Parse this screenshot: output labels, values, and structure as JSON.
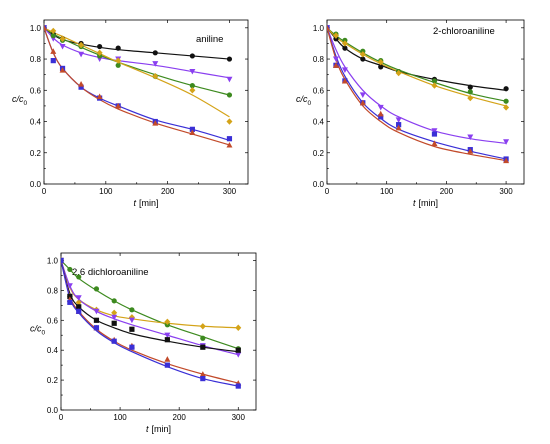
{
  "colors": {
    "black": "#111111",
    "purple": "#8a3ff0",
    "green": "#3d8a1f",
    "gold": "#d4a318",
    "blue": "#3a2fd6",
    "red": "#c24a2a"
  },
  "chart_data": [
    {
      "type": "scatter",
      "title": "aniline",
      "xlabel_prefix": "t",
      "xlabel_unit": "[min]",
      "ylabel_main": "c/c",
      "ylabel_sub": "0",
      "xlim": [
        0,
        330
      ],
      "ylim": [
        0,
        1.05
      ],
      "xticks": [
        0,
        100,
        200,
        300
      ],
      "yticks": [
        0.0,
        0.2,
        0.4,
        0.6,
        0.8,
        1.0
      ],
      "xtick_labels": [
        "0",
        "100",
        "200",
        "300"
      ],
      "ytick_labels": [
        "0.0",
        "0.2",
        "0.4",
        "0.6",
        "0.8",
        "1.0"
      ],
      "series": [
        {
          "color": "#111111",
          "marker": "circle",
          "x": [
            0,
            15,
            30,
            60,
            90,
            120,
            180,
            240,
            300
          ],
          "y": [
            1.0,
            0.96,
            0.93,
            0.9,
            0.88,
            0.87,
            0.84,
            0.82,
            0.8
          ],
          "fit": [
            1.0,
            0.955,
            0.925,
            0.895,
            0.875,
            0.86,
            0.84,
            0.82,
            0.8
          ]
        },
        {
          "color": "#8a3ff0",
          "marker": "triangle-down",
          "x": [
            0,
            15,
            30,
            60,
            90,
            120,
            180,
            240,
            300
          ],
          "y": [
            1.0,
            0.93,
            0.88,
            0.83,
            0.8,
            0.8,
            0.77,
            0.72,
            0.67
          ],
          "fit": [
            1.0,
            0.935,
            0.89,
            0.84,
            0.81,
            0.79,
            0.76,
            0.72,
            0.68
          ]
        },
        {
          "color": "#3d8a1f",
          "marker": "circle",
          "x": [
            0,
            15,
            30,
            60,
            90,
            120,
            180,
            240,
            300
          ],
          "y": [
            1.0,
            0.95,
            0.92,
            0.88,
            0.82,
            0.76,
            0.69,
            0.63,
            0.57
          ],
          "fit": [
            1.0,
            0.96,
            0.93,
            0.875,
            0.825,
            0.78,
            0.7,
            0.63,
            0.57
          ]
        },
        {
          "color": "#d4a318",
          "marker": "diamond",
          "x": [
            0,
            15,
            30,
            60,
            90,
            120,
            180,
            240,
            300
          ],
          "y": [
            1.0,
            0.98,
            0.93,
            0.89,
            0.84,
            0.79,
            0.69,
            0.6,
            0.4
          ],
          "fit": [
            1.0,
            0.97,
            0.945,
            0.89,
            0.835,
            0.78,
            0.68,
            0.57,
            0.43
          ]
        },
        {
          "color": "#3a2fd6",
          "marker": "square",
          "x": [
            0,
            15,
            30,
            60,
            90,
            120,
            180,
            240,
            300
          ],
          "y": [
            1.0,
            0.79,
            0.74,
            0.62,
            0.55,
            0.5,
            0.4,
            0.35,
            0.29
          ],
          "fit": [
            1.0,
            0.84,
            0.74,
            0.62,
            0.55,
            0.5,
            0.41,
            0.35,
            0.28
          ]
        },
        {
          "color": "#c24a2a",
          "marker": "triangle-up",
          "x": [
            0,
            15,
            30,
            60,
            90,
            120,
            180,
            240,
            300
          ],
          "y": [
            1.0,
            0.85,
            0.73,
            0.64,
            0.56,
            0.5,
            0.39,
            0.33,
            0.25
          ],
          "fit": [
            1.0,
            0.84,
            0.74,
            0.62,
            0.54,
            0.48,
            0.39,
            0.32,
            0.25
          ]
        }
      ]
    },
    {
      "type": "scatter",
      "title": "2-chloroaniline",
      "xlabel_prefix": "t",
      "xlabel_unit": "[min]",
      "ylabel_main": "c/c",
      "ylabel_sub": "0",
      "xlim": [
        0,
        330
      ],
      "ylim": [
        0,
        1.05
      ],
      "xticks": [
        0,
        100,
        200,
        300
      ],
      "yticks": [
        0.0,
        0.2,
        0.4,
        0.6,
        0.8,
        1.0
      ],
      "xtick_labels": [
        "0",
        "100",
        "200",
        "300"
      ],
      "ytick_labels": [
        "0.0",
        "0.2",
        "0.4",
        "0.6",
        "0.8",
        "1.0"
      ],
      "series": [
        {
          "color": "#111111",
          "marker": "circle",
          "x": [
            0,
            15,
            30,
            60,
            90,
            120,
            180,
            240,
            300
          ],
          "y": [
            1.0,
            0.93,
            0.87,
            0.8,
            0.75,
            0.72,
            0.67,
            0.62,
            0.61
          ],
          "fit": [
            1.0,
            0.93,
            0.87,
            0.8,
            0.76,
            0.72,
            0.67,
            0.63,
            0.6
          ]
        },
        {
          "color": "#3d8a1f",
          "marker": "circle",
          "x": [
            0,
            15,
            30,
            60,
            90,
            120,
            180,
            240,
            300
          ],
          "y": [
            1.0,
            0.96,
            0.92,
            0.85,
            0.79,
            0.72,
            0.66,
            0.59,
            0.53
          ],
          "fit": [
            1.0,
            0.95,
            0.91,
            0.84,
            0.78,
            0.73,
            0.65,
            0.58,
            0.53
          ]
        },
        {
          "color": "#d4a318",
          "marker": "diamond",
          "x": [
            0,
            15,
            30,
            60,
            90,
            120,
            180,
            240,
            300
          ],
          "y": [
            1.0,
            0.95,
            0.9,
            0.83,
            0.78,
            0.71,
            0.63,
            0.55,
            0.49
          ],
          "fit": [
            1.0,
            0.94,
            0.9,
            0.83,
            0.77,
            0.72,
            0.63,
            0.56,
            0.5
          ]
        },
        {
          "color": "#8a3ff0",
          "marker": "triangle-down",
          "x": [
            0,
            15,
            30,
            60,
            90,
            120,
            180,
            240,
            300
          ],
          "y": [
            1.0,
            0.8,
            0.73,
            0.57,
            0.49,
            0.41,
            0.34,
            0.3,
            0.27
          ],
          "fit": [
            1.0,
            0.86,
            0.75,
            0.6,
            0.5,
            0.43,
            0.34,
            0.29,
            0.26
          ]
        },
        {
          "color": "#3a2fd6",
          "marker": "square",
          "x": [
            0,
            15,
            30,
            60,
            90,
            120,
            180,
            240,
            300
          ],
          "y": [
            1.0,
            0.76,
            0.66,
            0.52,
            0.43,
            0.38,
            0.32,
            0.22,
            0.16
          ],
          "fit": [
            1.0,
            0.82,
            0.69,
            0.52,
            0.42,
            0.35,
            0.27,
            0.21,
            0.16
          ]
        },
        {
          "color": "#c24a2a",
          "marker": "triangle-up",
          "x": [
            0,
            15,
            30,
            60,
            90,
            120,
            180,
            240,
            300
          ],
          "y": [
            1.0,
            0.76,
            0.66,
            0.52,
            0.45,
            0.36,
            0.26,
            0.21,
            0.15
          ],
          "fit": [
            1.0,
            0.8,
            0.67,
            0.5,
            0.4,
            0.33,
            0.24,
            0.19,
            0.15
          ]
        }
      ]
    },
    {
      "type": "scatter",
      "title": "2,6 dichloroaniline",
      "xlabel_prefix": "t",
      "xlabel_unit": "[min]",
      "ylabel_main": "c/c",
      "ylabel_sub": "0",
      "xlim": [
        0,
        330
      ],
      "ylim": [
        0,
        1.05
      ],
      "xticks": [
        0,
        100,
        200,
        300
      ],
      "yticks": [
        0.0,
        0.2,
        0.4,
        0.6,
        0.8,
        1.0
      ],
      "xtick_labels": [
        "0",
        "100",
        "200",
        "300"
      ],
      "ytick_labels": [
        "0.0",
        "0.2",
        "0.4",
        "0.6",
        "0.8",
        "1.0"
      ],
      "series": [
        {
          "color": "#3d8a1f",
          "marker": "circle",
          "x": [
            0,
            15,
            30,
            60,
            90,
            120,
            180,
            240,
            300
          ],
          "y": [
            1.0,
            0.94,
            0.89,
            0.81,
            0.73,
            0.67,
            0.57,
            0.48,
            0.41
          ],
          "fit": [
            1.0,
            0.94,
            0.88,
            0.8,
            0.73,
            0.67,
            0.57,
            0.49,
            0.41
          ]
        },
        {
          "color": "#d4a318",
          "marker": "diamond",
          "x": [
            0,
            15,
            30,
            60,
            90,
            120,
            180,
            240,
            300
          ],
          "y": [
            1.0,
            0.76,
            0.72,
            0.67,
            0.65,
            0.62,
            0.59,
            0.56,
            0.55
          ],
          "fit": [
            1.0,
            0.82,
            0.74,
            0.67,
            0.63,
            0.61,
            0.58,
            0.56,
            0.55
          ]
        },
        {
          "color": "#8a3ff0",
          "marker": "triangle-down",
          "x": [
            0,
            15,
            30,
            60,
            90,
            120,
            180,
            240,
            300
          ],
          "y": [
            1.0,
            0.83,
            0.75,
            0.66,
            0.62,
            0.6,
            0.5,
            0.43,
            0.37
          ],
          "fit": [
            1.0,
            0.83,
            0.74,
            0.66,
            0.61,
            0.57,
            0.5,
            0.43,
            0.37
          ]
        },
        {
          "color": "#111111",
          "marker": "square",
          "x": [
            0,
            15,
            30,
            60,
            90,
            120,
            180,
            240,
            300
          ],
          "y": [
            1.0,
            0.76,
            0.69,
            0.6,
            0.58,
            0.54,
            0.47,
            0.42,
            0.4
          ],
          "fit": [
            1.0,
            0.78,
            0.69,
            0.6,
            0.55,
            0.51,
            0.46,
            0.42,
            0.39
          ]
        },
        {
          "color": "#c24a2a",
          "marker": "triangle-up",
          "x": [
            0,
            15,
            30,
            60,
            90,
            120,
            180,
            240,
            300
          ],
          "y": [
            1.0,
            0.74,
            0.66,
            0.55,
            0.47,
            0.43,
            0.34,
            0.24,
            0.18
          ],
          "fit": [
            1.0,
            0.76,
            0.66,
            0.54,
            0.46,
            0.4,
            0.31,
            0.24,
            0.18
          ]
        },
        {
          "color": "#3a2fd6",
          "marker": "square",
          "x": [
            0,
            15,
            30,
            60,
            90,
            120,
            180,
            240,
            300
          ],
          "y": [
            1.0,
            0.72,
            0.66,
            0.55,
            0.46,
            0.42,
            0.3,
            0.21,
            0.16
          ],
          "fit": [
            1.0,
            0.75,
            0.65,
            0.53,
            0.45,
            0.39,
            0.29,
            0.21,
            0.16
          ]
        }
      ]
    }
  ]
}
